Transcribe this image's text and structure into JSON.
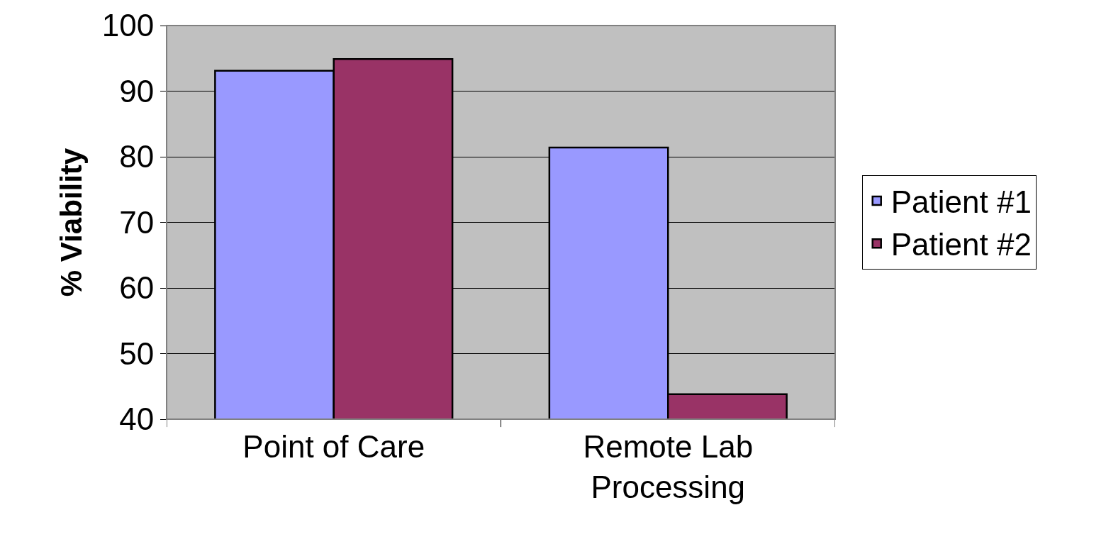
{
  "chart_data": {
    "type": "bar",
    "ylabel": "% Viability",
    "categories": [
      "Point of Care",
      "Remote Lab Processing"
    ],
    "series": [
      {
        "name": "Patient #1",
        "color": "#9999ff",
        "values": [
          93.1,
          81.4
        ]
      },
      {
        "name": "Patient #2",
        "color": "#993366",
        "values": [
          94.9,
          43.8
        ]
      }
    ],
    "ylim": [
      40,
      100
    ],
    "yticks": [
      40,
      50,
      60,
      70,
      80,
      90,
      100
    ],
    "grid": "y",
    "legend": "right"
  }
}
